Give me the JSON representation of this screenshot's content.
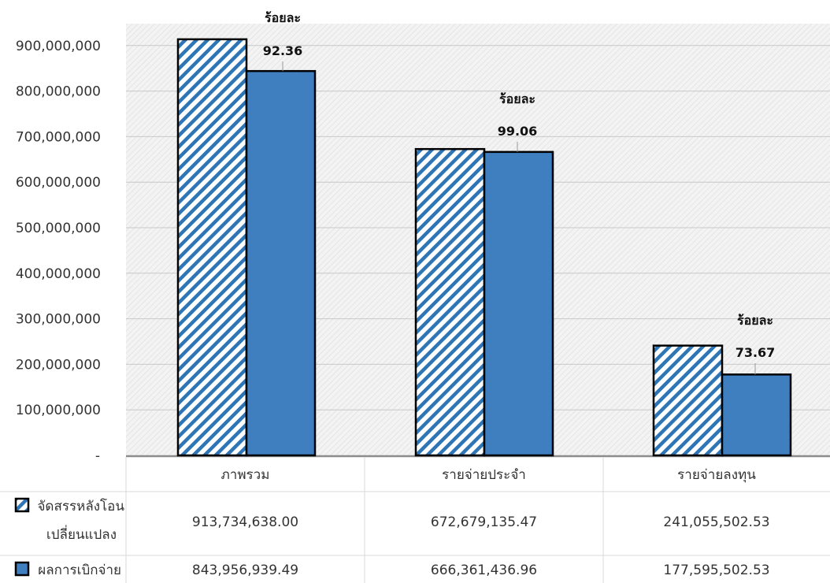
{
  "chart_data": {
    "type": "bar",
    "categories": [
      "ภาพรวม",
      "รายจ่ายประจำ",
      "รายจ่ายลงทุน"
    ],
    "series": [
      {
        "name": "จัดสรรหลังโอนเปลี่ยนแปลง",
        "name_lines": [
          "จัดสรรหลังโอน",
          "เปลี่ยนแปลง"
        ],
        "values": [
          913734638.0,
          672679135.47,
          241055502.53
        ],
        "labels": [
          "913,734,638.00",
          "672,679,135.47",
          "241,055,502.53"
        ],
        "color": "#2e75b6",
        "pattern": "diagonal-stripes"
      },
      {
        "name": "ผลการเบิกจ่าย",
        "name_lines": [
          "ผลการเบิกจ่าย"
        ],
        "values": [
          843956939.49,
          666361436.96,
          177595502.53
        ],
        "labels": [
          "843,956,939.49",
          "666,361,436.96",
          "177,595,502.53"
        ],
        "color": "#3f7fbf",
        "pattern": "solid"
      }
    ],
    "annotations": [
      {
        "category": "ภาพรวม",
        "line1": "ร้อยละ",
        "line2": "92.36"
      },
      {
        "category": "รายจ่ายประจำ",
        "line1": "ร้อยละ",
        "line2": "99.06"
      },
      {
        "category": "รายจ่ายลงทุน",
        "line1": "ร้อยละ",
        "line2": "73.67"
      }
    ],
    "y_ticks": [
      "-",
      "100,000,000",
      "200,000,000",
      "300,000,000",
      "400,000,000",
      "500,000,000",
      "600,000,000",
      "700,000,000",
      "800,000,000",
      "900,000,000"
    ],
    "ylim": [
      0,
      900000000
    ],
    "grid": true,
    "legend": "data-table"
  }
}
